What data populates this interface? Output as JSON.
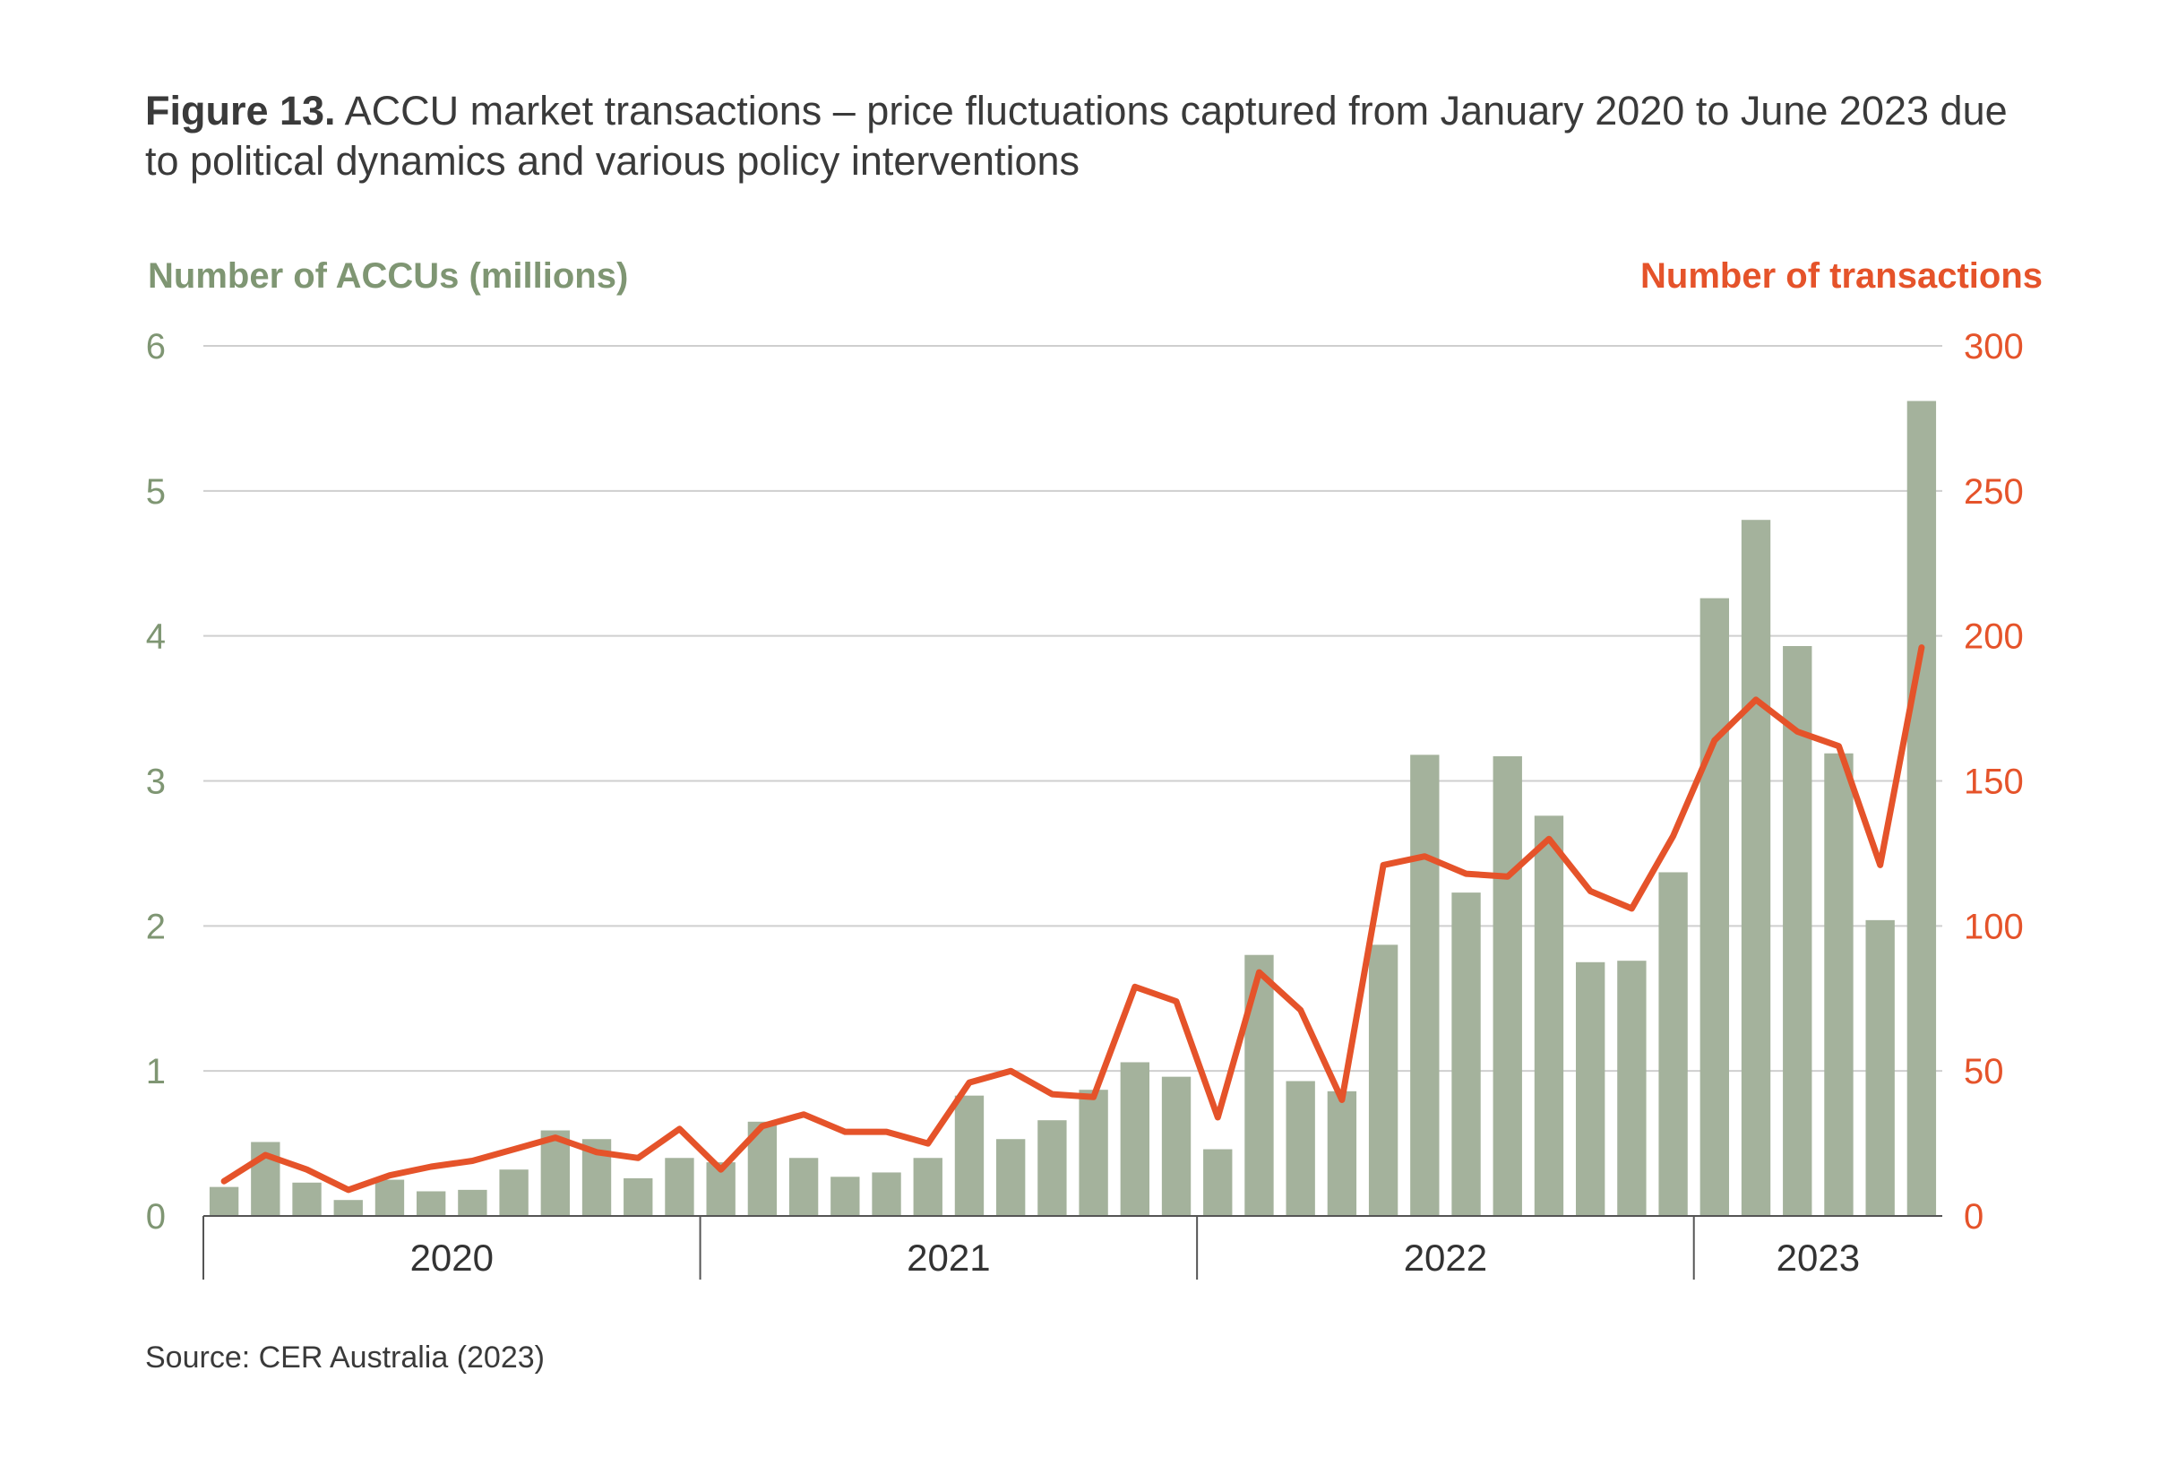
{
  "figure": {
    "label": "Figure 13.",
    "title": "ACCU market transactions – price fluctuations captured from January 2020 to June 2023 due to political dynamics and various policy interventions",
    "source": "Source: CER Australia (2023)"
  },
  "colors": {
    "bars": "#a4b29c",
    "line": "#e5532a",
    "left_axis": "#7f9673",
    "right_axis": "#e5532a",
    "grid": "#cfcfcf"
  },
  "chart_data": {
    "type": "bar",
    "ylabel": "Number of ACCUs (millions)",
    "ylabel_right": "Number of transactions",
    "ylim": [
      0,
      6
    ],
    "ylim_right": [
      0,
      300
    ],
    "yticks": [
      0,
      1,
      2,
      3,
      4,
      5,
      6
    ],
    "yticks_right": [
      0,
      50,
      100,
      150,
      200,
      250,
      300
    ],
    "grid": true,
    "year_labels": [
      "2020",
      "2021",
      "2022",
      "2023"
    ],
    "months_per_year": [
      12,
      12,
      12,
      6
    ],
    "series": [
      {
        "type": "bar",
        "axis": "left",
        "values": [
          0.2,
          0.51,
          0.23,
          0.11,
          0.25,
          0.17,
          0.18,
          0.32,
          0.59,
          0.53,
          0.26,
          0.4,
          0.37,
          0.65,
          0.4,
          0.27,
          0.3,
          0.4,
          0.83,
          0.53,
          0.66,
          0.87,
          1.06,
          0.96,
          0.46,
          1.8,
          0.93,
          0.86,
          1.87,
          3.18,
          2.23,
          3.17,
          2.76,
          1.75,
          1.76,
          2.37,
          4.26,
          4.8,
          3.93,
          3.19,
          2.04,
          5.62
        ]
      },
      {
        "type": "line",
        "axis": "right",
        "values": [
          12,
          21,
          16,
          9,
          14,
          17,
          19,
          23,
          27,
          22,
          20,
          30,
          16,
          31,
          35,
          29,
          29,
          25,
          46,
          50,
          42,
          41,
          79,
          74,
          34,
          84,
          71,
          40,
          121,
          124,
          118,
          117,
          130,
          112,
          106,
          131,
          164,
          178,
          167,
          162,
          121,
          196
        ]
      }
    ]
  }
}
